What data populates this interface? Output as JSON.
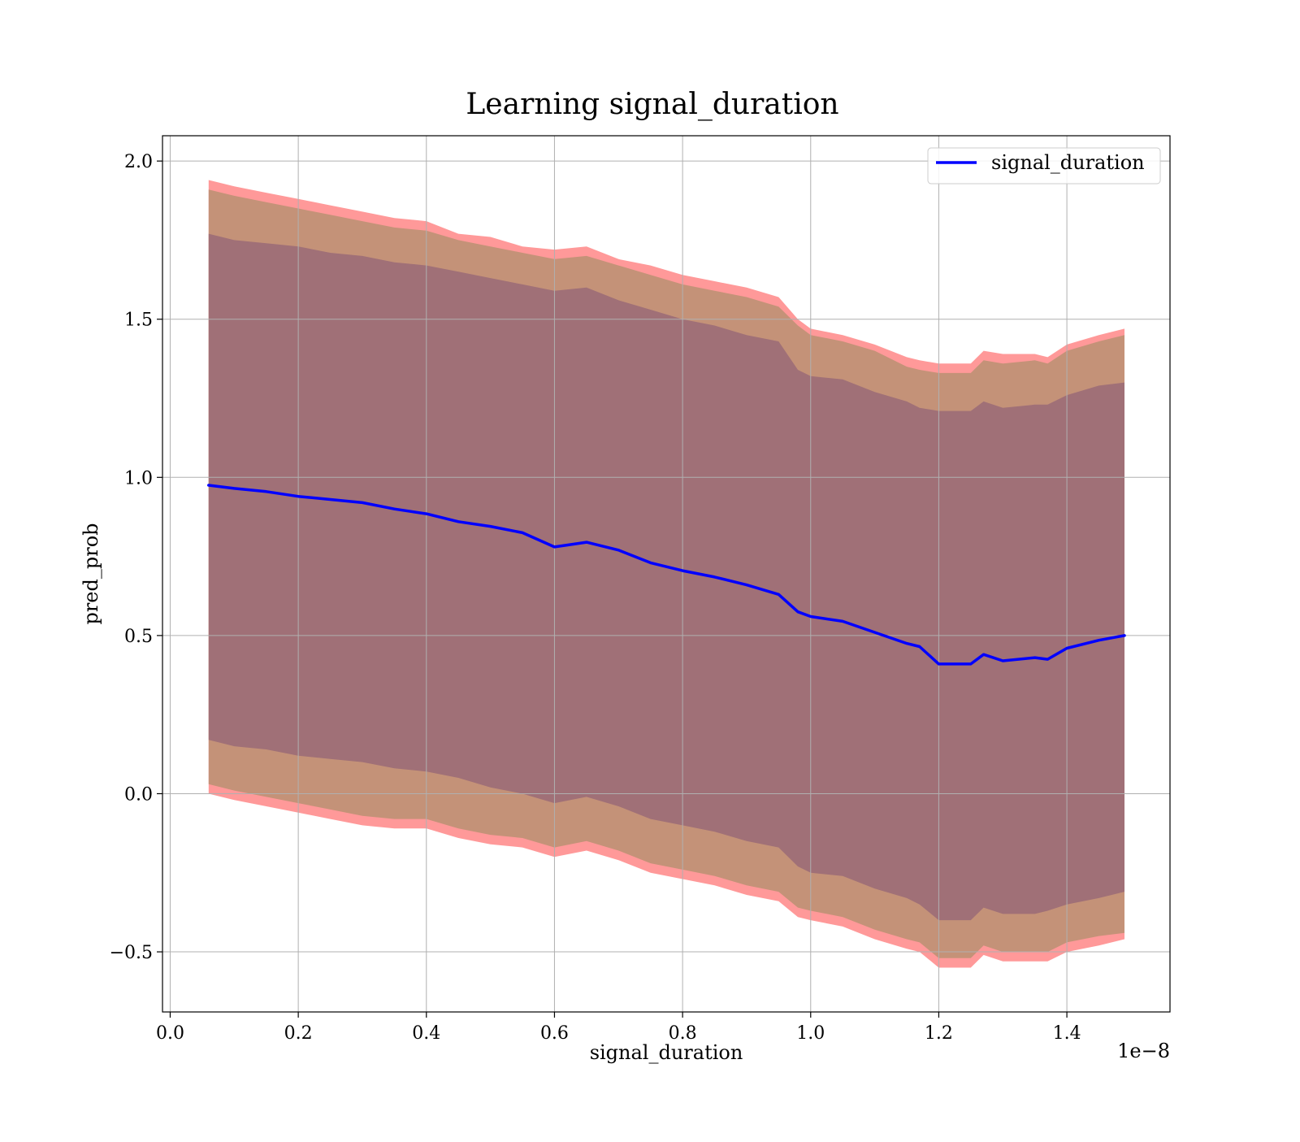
{
  "chart_data": {
    "type": "line",
    "title": "Learning signal_duration",
    "xlabel": "signal_duration",
    "ylabel": "pred_prob",
    "x_offset_label": "1e−8",
    "x_scale_factor": 1e-08,
    "xlim": [
      -0.012,
      1.561
    ],
    "ylim": [
      -0.69,
      2.08
    ],
    "x_ticks": [
      0.0,
      0.2,
      0.4,
      0.6,
      0.8,
      1.0,
      1.2,
      1.4
    ],
    "x_tick_labels": [
      "0.0",
      "0.2",
      "0.4",
      "0.6",
      "0.8",
      "1.0",
      "1.2",
      "1.4"
    ],
    "y_ticks": [
      -0.5,
      0.0,
      0.5,
      1.0,
      1.5,
      2.0
    ],
    "y_tick_labels": [
      "−0.5",
      "0.0",
      "0.5",
      "1.0",
      "1.5",
      "2.0"
    ],
    "grid": true,
    "legend_position": "top-right",
    "colors": {
      "line": "#0000ff",
      "band_outer": "#ff9999",
      "band_middle": "#c49278",
      "band_inner": "#a07077"
    },
    "x": [
      0.06,
      0.1,
      0.15,
      0.2,
      0.25,
      0.3,
      0.35,
      0.4,
      0.45,
      0.5,
      0.55,
      0.6,
      0.65,
      0.7,
      0.75,
      0.8,
      0.85,
      0.9,
      0.95,
      0.98,
      1.0,
      1.05,
      1.1,
      1.15,
      1.17,
      1.2,
      1.25,
      1.27,
      1.3,
      1.35,
      1.37,
      1.4,
      1.45,
      1.49
    ],
    "series": [
      {
        "name": "signal_duration",
        "values": [
          0.975,
          0.965,
          0.955,
          0.94,
          0.93,
          0.92,
          0.9,
          0.885,
          0.86,
          0.845,
          0.825,
          0.78,
          0.795,
          0.77,
          0.73,
          0.705,
          0.685,
          0.66,
          0.63,
          0.575,
          0.56,
          0.545,
          0.51,
          0.475,
          0.465,
          0.41,
          0.41,
          0.44,
          0.42,
          0.43,
          0.425,
          0.46,
          0.485,
          0.5
        ]
      }
    ],
    "bands": [
      {
        "level": "outer",
        "upper": [
          1.94,
          1.92,
          1.9,
          1.88,
          1.86,
          1.84,
          1.82,
          1.81,
          1.77,
          1.76,
          1.73,
          1.72,
          1.73,
          1.69,
          1.67,
          1.64,
          1.62,
          1.6,
          1.57,
          1.5,
          1.47,
          1.45,
          1.42,
          1.38,
          1.37,
          1.36,
          1.36,
          1.4,
          1.39,
          1.39,
          1.38,
          1.42,
          1.45,
          1.47
        ],
        "lower": [
          0.0,
          -0.02,
          -0.04,
          -0.06,
          -0.08,
          -0.1,
          -0.11,
          -0.11,
          -0.14,
          -0.16,
          -0.17,
          -0.2,
          -0.18,
          -0.21,
          -0.25,
          -0.27,
          -0.29,
          -0.32,
          -0.34,
          -0.39,
          -0.4,
          -0.42,
          -0.46,
          -0.49,
          -0.5,
          -0.55,
          -0.55,
          -0.51,
          -0.53,
          -0.53,
          -0.53,
          -0.5,
          -0.48,
          -0.46
        ]
      },
      {
        "level": "middle",
        "upper": [
          1.91,
          1.89,
          1.87,
          1.85,
          1.83,
          1.81,
          1.79,
          1.78,
          1.75,
          1.73,
          1.71,
          1.69,
          1.7,
          1.67,
          1.64,
          1.61,
          1.59,
          1.57,
          1.54,
          1.48,
          1.45,
          1.43,
          1.4,
          1.35,
          1.34,
          1.33,
          1.33,
          1.37,
          1.36,
          1.37,
          1.36,
          1.4,
          1.43,
          1.45
        ],
        "lower": [
          0.03,
          0.01,
          -0.01,
          -0.03,
          -0.05,
          -0.07,
          -0.08,
          -0.08,
          -0.11,
          -0.13,
          -0.14,
          -0.17,
          -0.15,
          -0.18,
          -0.22,
          -0.24,
          -0.26,
          -0.29,
          -0.31,
          -0.36,
          -0.37,
          -0.39,
          -0.43,
          -0.46,
          -0.47,
          -0.52,
          -0.52,
          -0.48,
          -0.5,
          -0.5,
          -0.5,
          -0.47,
          -0.45,
          -0.44
        ]
      },
      {
        "level": "inner",
        "upper": [
          1.77,
          1.75,
          1.74,
          1.73,
          1.71,
          1.7,
          1.68,
          1.67,
          1.65,
          1.63,
          1.61,
          1.59,
          1.6,
          1.56,
          1.53,
          1.5,
          1.48,
          1.45,
          1.43,
          1.34,
          1.32,
          1.31,
          1.27,
          1.24,
          1.22,
          1.21,
          1.21,
          1.24,
          1.22,
          1.23,
          1.23,
          1.26,
          1.29,
          1.3
        ],
        "lower": [
          0.17,
          0.15,
          0.14,
          0.12,
          0.11,
          0.1,
          0.08,
          0.07,
          0.05,
          0.02,
          0.0,
          -0.03,
          -0.01,
          -0.04,
          -0.08,
          -0.1,
          -0.12,
          -0.15,
          -0.17,
          -0.23,
          -0.25,
          -0.26,
          -0.3,
          -0.33,
          -0.35,
          -0.4,
          -0.4,
          -0.36,
          -0.38,
          -0.38,
          -0.37,
          -0.35,
          -0.33,
          -0.31
        ]
      }
    ]
  }
}
